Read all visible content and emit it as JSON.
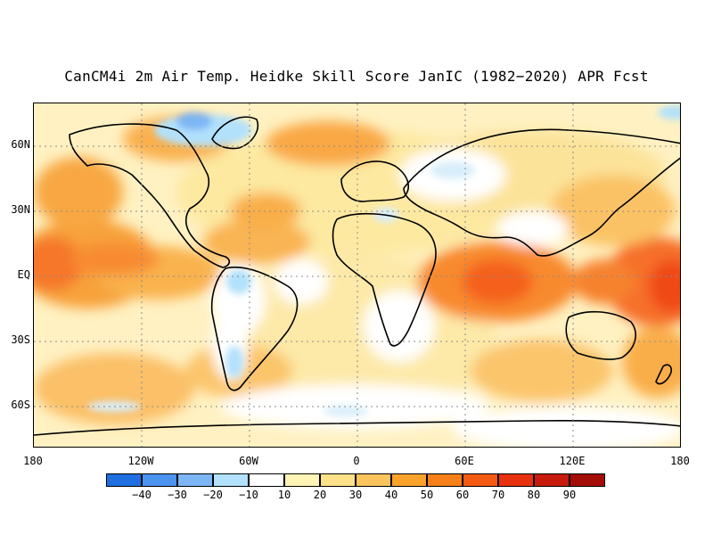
{
  "title": "CanCM4i 2m Air Temp. Heidke Skill Score JanIC (1982−2020) APR Fcst",
  "lat_labels": [
    "60N",
    "30N",
    "EQ",
    "30S",
    "60S"
  ],
  "lon_labels": [
    "180",
    "120W",
    "60W",
    "0",
    "60E",
    "120E",
    "180"
  ],
  "colorbar": {
    "colors": [
      "#1f6fe0",
      "#4c92ef",
      "#7db6f6",
      "#b2e1fb",
      "#ffffff",
      "#fff4b5",
      "#fde28a",
      "#fbc45c",
      "#f9a32c",
      "#f78018",
      "#f55a13",
      "#e8320f",
      "#c81b0d",
      "#a40c08"
    ],
    "labels": [
      "−40",
      "−30",
      "−20",
      "−10",
      "10",
      "20",
      "30",
      "40",
      "50",
      "60",
      "70",
      "80",
      "90"
    ]
  }
}
